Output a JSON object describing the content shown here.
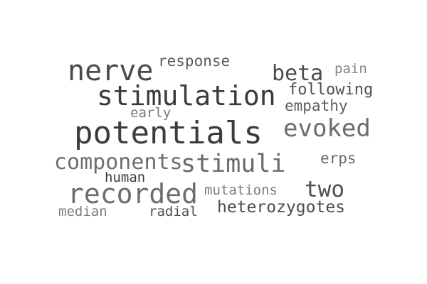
{
  "words": {
    "nerve": "nerve",
    "response": "response",
    "beta": "beta",
    "pain": "pain",
    "stimulation": "stimulation",
    "following": "following",
    "empathy": "empathy",
    "early": "early",
    "potentials": "potentials",
    "evoked": "evoked",
    "components": "components",
    "stimuli": "stimuli",
    "erps": "erps",
    "human": "human",
    "recorded": "recorded",
    "mutations": "mutations",
    "two": "two",
    "heterozygotes": "heterozygotes",
    "median": "median",
    "radial": "radial"
  }
}
